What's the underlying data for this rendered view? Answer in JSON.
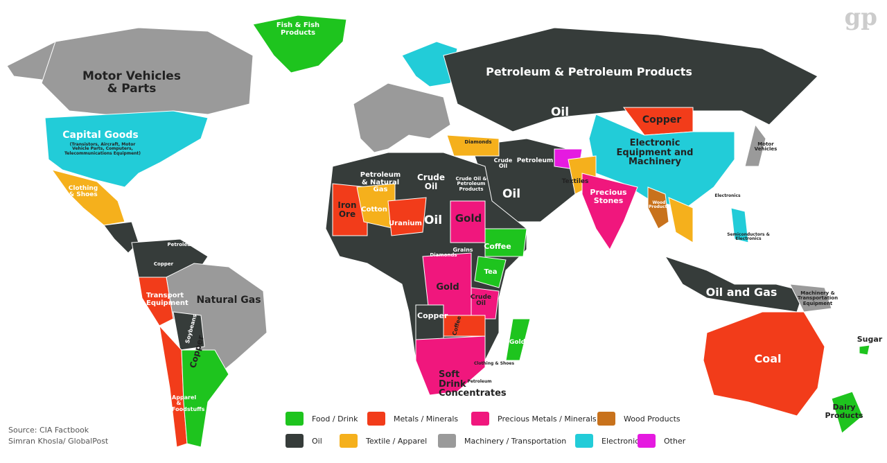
{
  "logo": "gp",
  "labels": [
    {
      "text": "Fish & Fish Products"
    },
    {
      "text": "Motor Vehicles & Parts"
    },
    {
      "text": "Capital Goods"
    },
    {
      "text": "(Transistors, Aircraft, Motor Vehicle Parts, Computers, Telecommunications Equipment)"
    },
    {
      "text": "Clothing & Shoes"
    },
    {
      "text": "Petroleum & Petroleum Products"
    },
    {
      "text": "Oil"
    },
    {
      "text": "Copper"
    },
    {
      "text": "Electronic Equipment and Machinery"
    },
    {
      "text": "Motor Vehicles"
    },
    {
      "text": "Petroleum"
    },
    {
      "text": "Oil"
    },
    {
      "text": "Crude Oil"
    },
    {
      "text": "Textiles"
    },
    {
      "text": "Precious Stones"
    },
    {
      "text": "Wood Products"
    },
    {
      "text": "Electronics"
    },
    {
      "text": "Semiconductors & Electronics"
    },
    {
      "text": "Oil and Gas"
    },
    {
      "text": "Machinery & Transportation Equipment"
    },
    {
      "text": "Coal"
    },
    {
      "text": "Sugar"
    },
    {
      "text": "Dairy Products"
    },
    {
      "text": "Petroleum & Natural Gas"
    },
    {
      "text": "Crude Oil"
    },
    {
      "text": "Crude Oil & Petroleum Products"
    },
    {
      "text": "Iron Ore"
    },
    {
      "text": "Cotton"
    },
    {
      "text": "Uranium"
    },
    {
      "text": "Oil"
    },
    {
      "text": "Gold"
    },
    {
      "text": "Coffee"
    },
    {
      "text": "Grains"
    },
    {
      "text": "Tea"
    },
    {
      "text": "Diamonds"
    },
    {
      "text": "Gold"
    },
    {
      "text": "Crude Oil"
    },
    {
      "text": "Copper"
    },
    {
      "text": "Coffee"
    },
    {
      "text": "Gold"
    },
    {
      "text": "Soft Drink Concentrates"
    },
    {
      "text": "Clothing & Shoes"
    },
    {
      "text": "Petroleum"
    },
    {
      "text": "Petroleum"
    },
    {
      "text": "Copper"
    },
    {
      "text": "Transport Equipment"
    },
    {
      "text": "Natural Gas"
    },
    {
      "text": "Soybeans"
    },
    {
      "text": "Copper"
    },
    {
      "text": "Apparel & Foodstuffs"
    },
    {
      "text": "Diamonds"
    }
  ],
  "legend": {
    "items": [
      {
        "label": "Food / Drink",
        "color": "#1ec41e"
      },
      {
        "label": "Metals / Minerals",
        "color": "#f23c1a"
      },
      {
        "label": "Precious Metals / Minerals",
        "color": "#f0177d"
      },
      {
        "label": "Wood Products",
        "color": "#c8721c"
      },
      {
        "label": "Oil",
        "color": "#363c3a"
      },
      {
        "label": "Textile / Apparel",
        "color": "#f5b01c"
      },
      {
        "label": "Machinery / Transportation",
        "color": "#9a9a9a"
      },
      {
        "label": "Electronics",
        "color": "#22ccd8"
      },
      {
        "label": "Other",
        "color": "#e51ae0"
      }
    ]
  },
  "source": [
    "Source: CIA Factbook",
    "Simran Khosla/ GlobalPost"
  ]
}
